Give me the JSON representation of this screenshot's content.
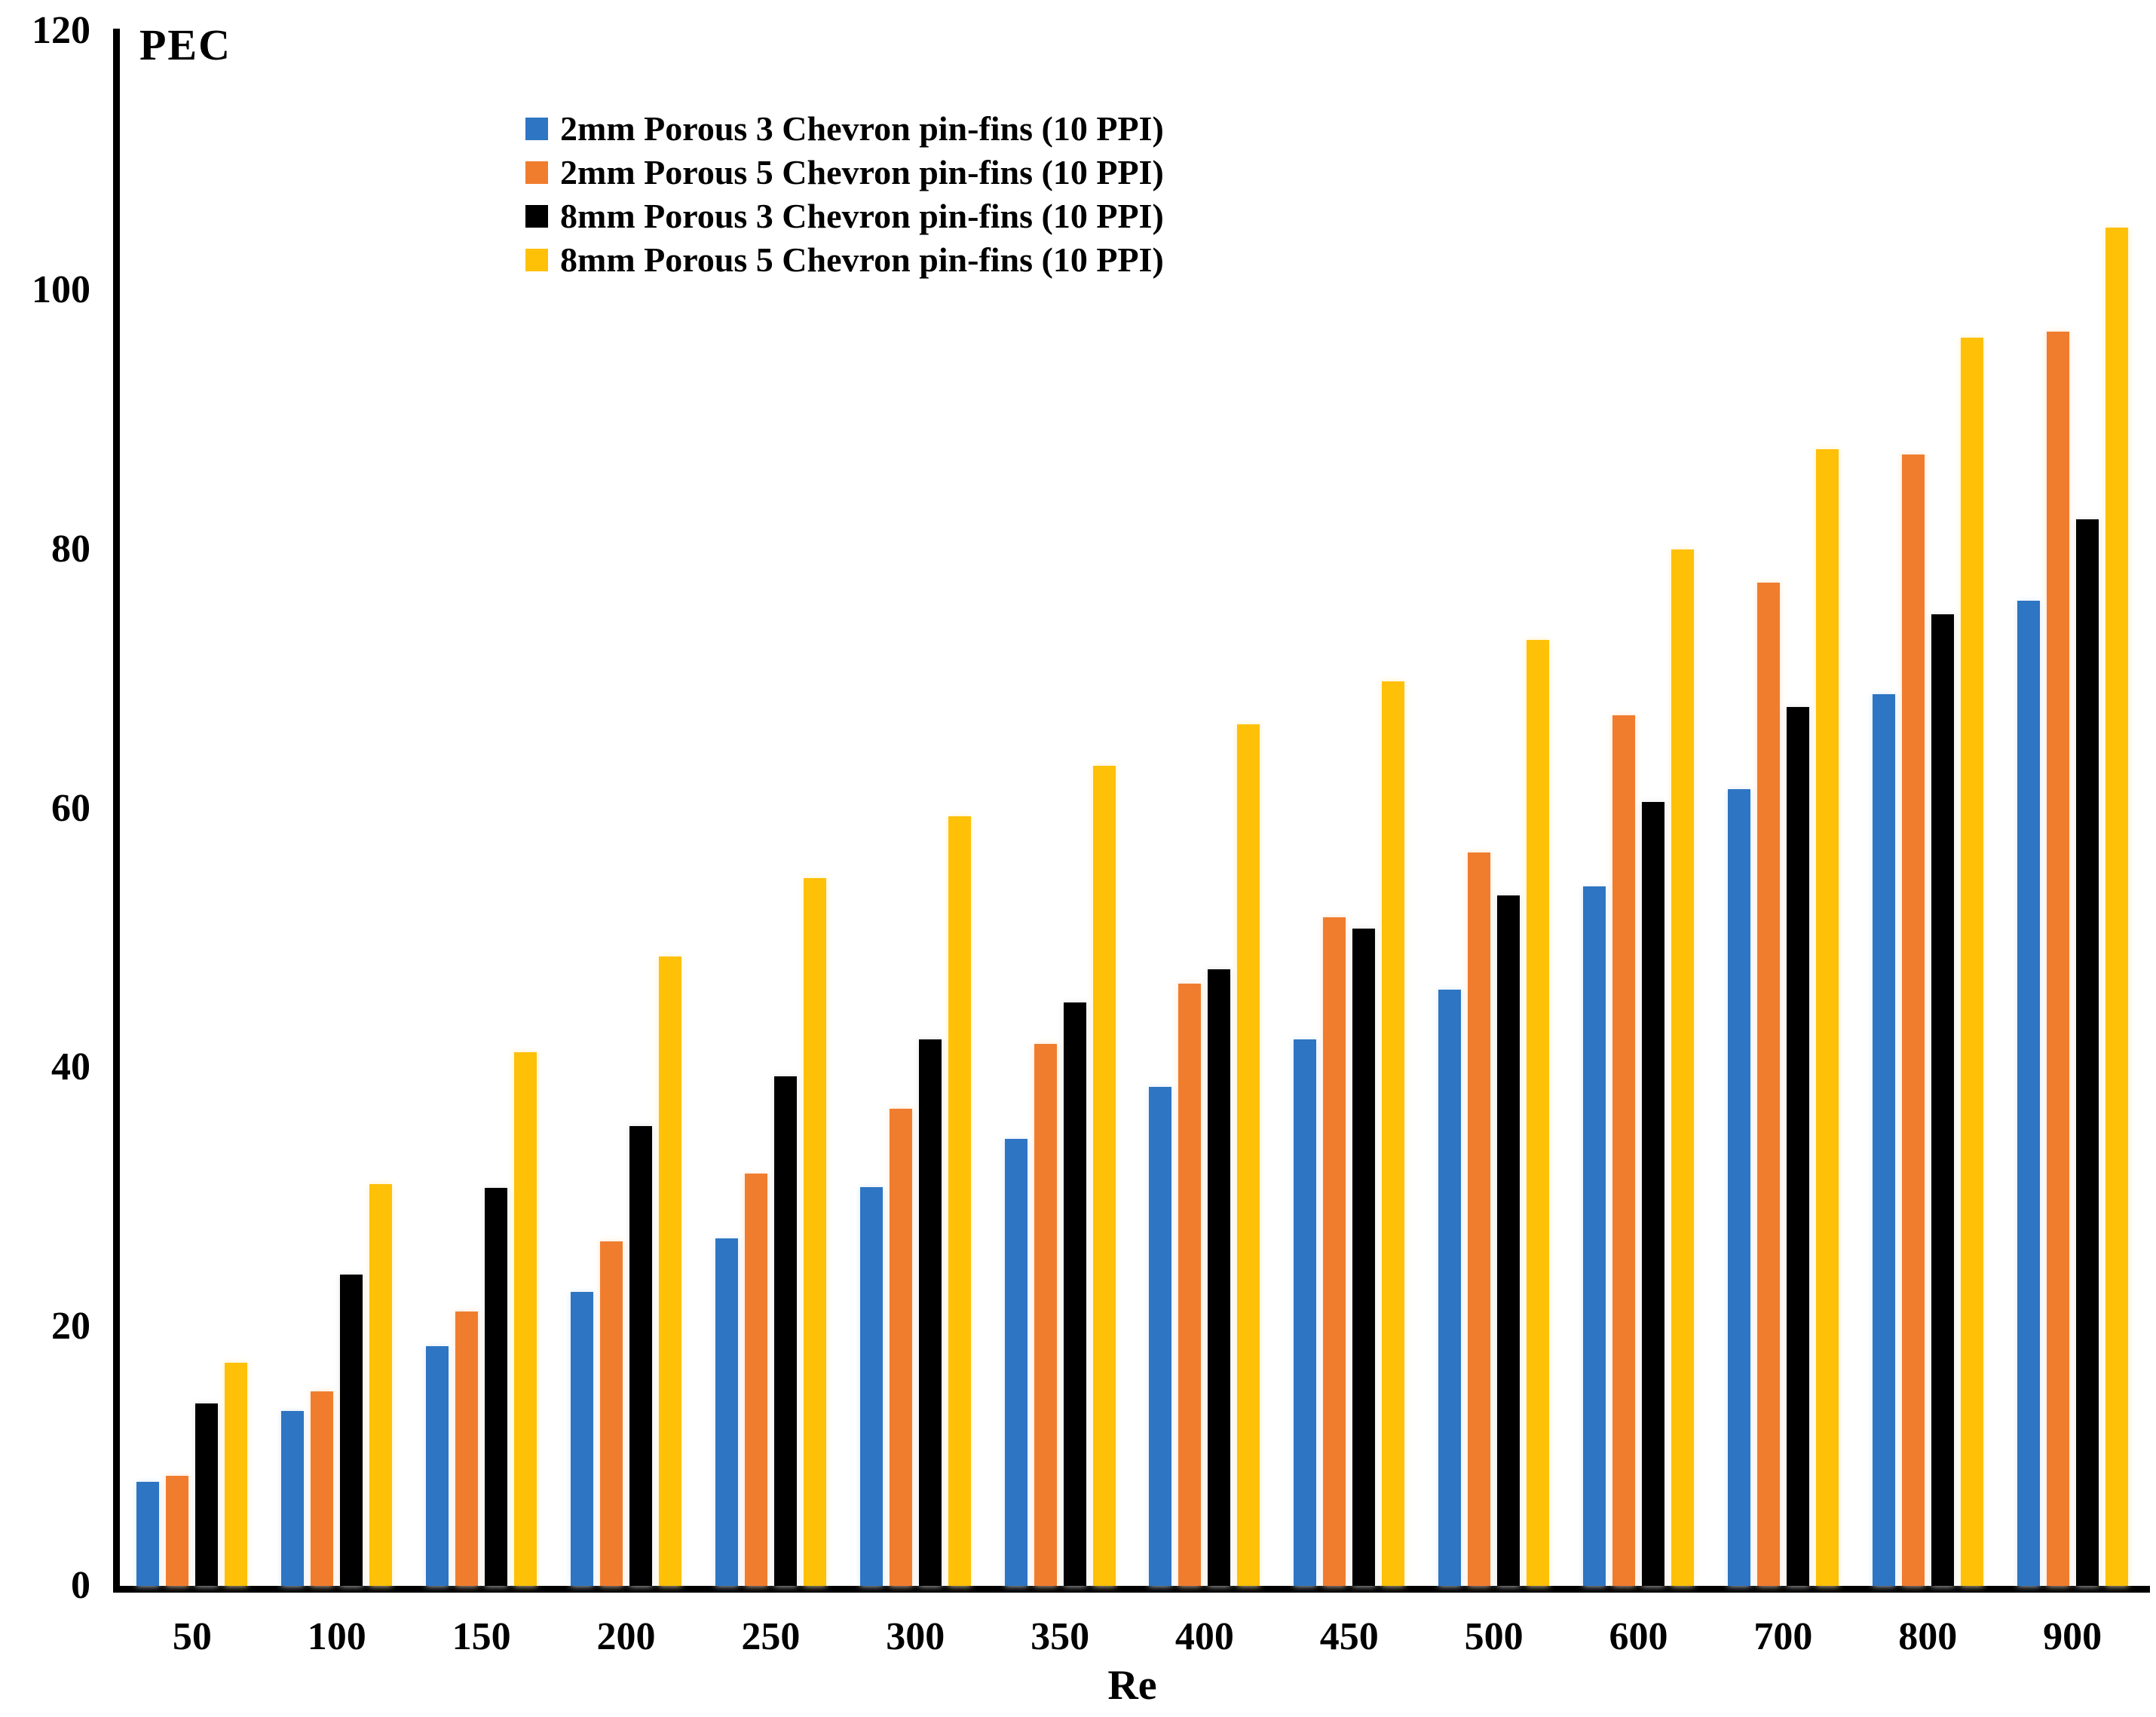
{
  "figure": {
    "background": "#FFFFFF",
    "y_axis_title": "PEC",
    "x_axis_title": "Re"
  },
  "chart_data": {
    "type": "bar",
    "title": "",
    "ylabel": "PEC",
    "xlabel": "Re",
    "ylim": [
      0,
      120
    ],
    "yticks": [
      120,
      100,
      80,
      60,
      40,
      20,
      0
    ],
    "grid": false,
    "legend_position": "inside-top-left",
    "categories": [
      "50",
      "100",
      "150",
      "200",
      "250",
      "300",
      "350",
      "400",
      "450",
      "500",
      "600",
      "700",
      "800",
      "900"
    ],
    "series": [
      {
        "name": "2mm Porous 3 Chevron pin-fins (10 PPI)",
        "color": "#2E75C3",
        "glow": "#DCE9F8",
        "values": [
          8.0,
          13.5,
          18.5,
          22.7,
          26.8,
          30.8,
          34.5,
          38.5,
          42.2,
          46.0,
          54.0,
          61.5,
          68.8,
          76.0
        ]
      },
      {
        "name": "2mm Porous 5 Chevron pin-fins (10 PPI)",
        "color": "#F07D2E",
        "glow": "#FCE4CC",
        "values": [
          8.5,
          15.0,
          21.2,
          26.6,
          31.8,
          36.8,
          41.8,
          46.5,
          51.6,
          56.6,
          67.2,
          77.4,
          87.3,
          96.8
        ]
      },
      {
        "name": "8mm Porous 3 Chevron pin-fins (10 PPI)",
        "color": "#000000",
        "glow": "#E4E4E4",
        "values": [
          14.1,
          24.0,
          30.7,
          35.5,
          39.3,
          42.2,
          45.0,
          47.6,
          50.7,
          53.3,
          60.5,
          67.8,
          75.0,
          82.3
        ]
      },
      {
        "name": "8mm Porous 5 Chevron pin-fins (10 PPI)",
        "color": "#FFC008",
        "glow": "#FFEFC2",
        "values": [
          17.2,
          31.0,
          41.2,
          48.6,
          54.6,
          59.4,
          63.3,
          66.5,
          69.8,
          73.0,
          80.0,
          87.7,
          96.3,
          104.8
        ]
      }
    ]
  }
}
